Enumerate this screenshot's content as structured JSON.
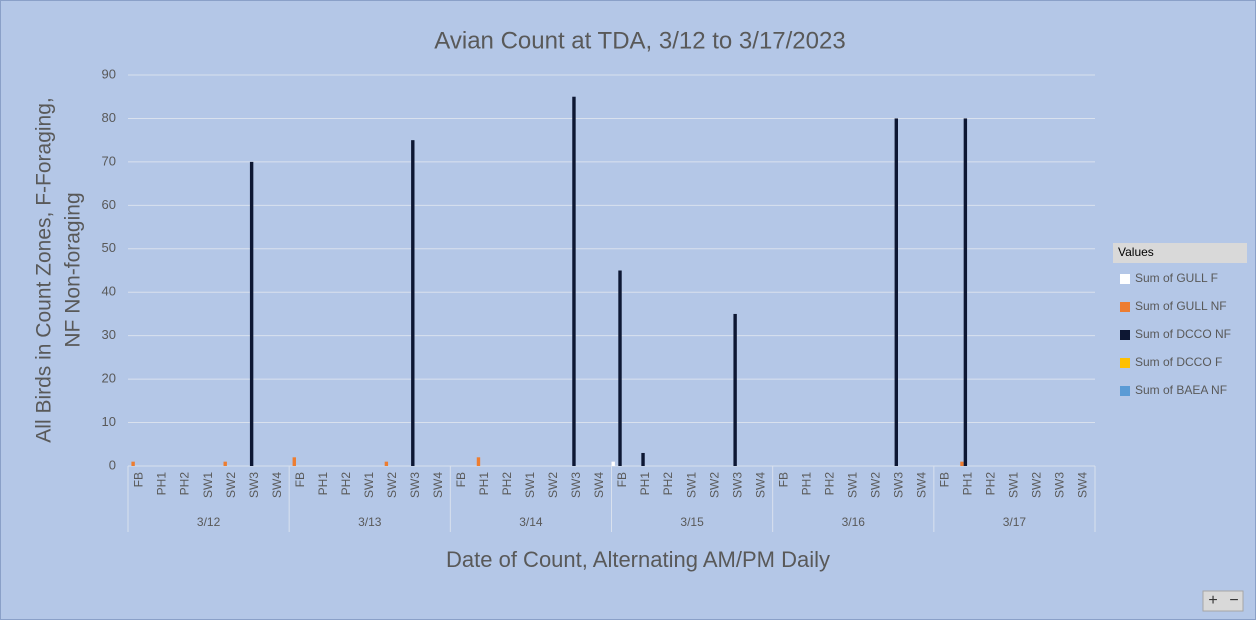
{
  "chart_data": {
    "type": "bar",
    "title": "Avian Count at TDA, 3/12 to 3/17/2023",
    "xlabel": "Date of Count, Alternating AM/PM Daily",
    "ylabel": [
      "All Birds in Count Zones, F-Foraging,",
      "NF Non-foraging"
    ],
    "legend_title": "Values",
    "groups": [
      "3/12",
      "3/13",
      "3/14",
      "3/15",
      "3/16",
      "3/17"
    ],
    "categories": [
      "FB",
      "PH1",
      "PH2",
      "SW1",
      "SW2",
      "SW3",
      "SW4",
      "FB",
      "PH1",
      "PH2",
      "SW1",
      "SW2",
      "SW3",
      "SW4",
      "FB",
      "PH1",
      "PH2",
      "SW1",
      "SW2",
      "SW3",
      "SW4",
      "FB",
      "PH1",
      "PH2",
      "SW1",
      "SW2",
      "SW3",
      "SW4",
      "FB",
      "PH1",
      "PH2",
      "SW1",
      "SW2",
      "SW3",
      "SW4",
      "FB",
      "PH1",
      "PH2",
      "SW1",
      "SW2",
      "SW3",
      "SW4"
    ],
    "series": [
      {
        "name": "Sum of GULL F",
        "color": "#ffffff",
        "values": [
          0,
          0,
          0,
          0,
          0,
          0,
          0,
          0,
          0,
          0,
          0,
          0,
          0,
          0,
          0,
          0,
          0,
          0,
          0,
          0,
          0,
          1,
          0,
          0,
          0,
          0,
          0,
          0,
          0,
          0,
          0,
          0,
          0,
          0,
          0,
          0,
          0,
          0,
          0,
          0,
          0,
          0
        ]
      },
      {
        "name": "Sum of GULL NF",
        "color": "#ed7d31",
        "values": [
          1,
          0,
          0,
          0,
          1,
          0,
          0,
          2,
          0,
          0,
          0,
          1,
          0,
          0,
          0,
          2,
          0,
          0,
          0,
          0,
          0,
          0,
          0,
          0,
          0,
          0,
          0,
          0,
          0,
          0,
          0,
          0,
          0,
          0,
          0,
          0,
          1,
          0,
          0,
          0,
          0,
          0
        ]
      },
      {
        "name": "Sum of DCCO NF",
        "color": "#0d1733",
        "values": [
          0,
          0,
          0,
          0,
          0,
          70,
          0,
          0,
          0,
          0,
          0,
          0,
          75,
          0,
          0,
          0,
          0,
          0,
          0,
          85,
          0,
          45,
          3,
          0,
          0,
          0,
          35,
          0,
          0,
          0,
          0,
          0,
          0,
          80,
          0,
          0,
          80,
          0,
          0,
          0,
          0,
          0
        ]
      },
      {
        "name": "Sum of DCCO F",
        "color": "#ffc000",
        "values": [
          0,
          0,
          0,
          0,
          0,
          0,
          0,
          0,
          0,
          0,
          0,
          0,
          0,
          0,
          0,
          0,
          0,
          0,
          0,
          0,
          0,
          0,
          0,
          0,
          0,
          0,
          0,
          0,
          0,
          0,
          0,
          0,
          0,
          0,
          0,
          0,
          0,
          0,
          0,
          0,
          0,
          0
        ]
      },
      {
        "name": "Sum of BAEA NF",
        "color": "#5b9bd5",
        "values": [
          0,
          0,
          0,
          0,
          0,
          0,
          0,
          0,
          0,
          0,
          0,
          0,
          0,
          0,
          0,
          0,
          0,
          0,
          0,
          0,
          0,
          0,
          0,
          0,
          0,
          0,
          0,
          0,
          0,
          0,
          0,
          0,
          0,
          0,
          0,
          0,
          0,
          0,
          0,
          0,
          0,
          0
        ]
      }
    ],
    "ylim": [
      0,
      90
    ],
    "yticks": [
      0,
      10,
      20,
      30,
      40,
      50,
      60,
      70,
      80,
      90
    ],
    "grid": true,
    "legend": "right"
  },
  "controls": [
    "+",
    "−"
  ]
}
